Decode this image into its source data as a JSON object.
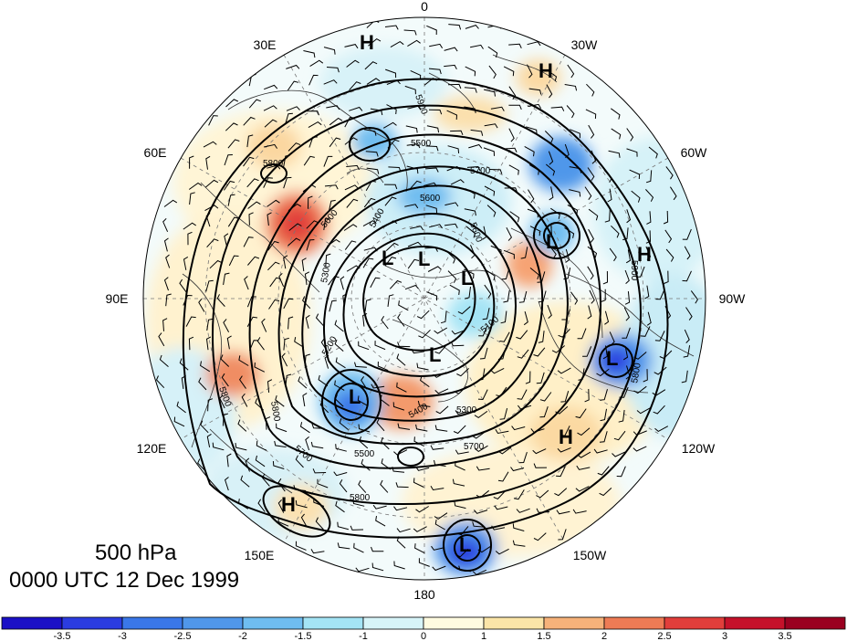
{
  "map": {
    "title_level": "500 hPa",
    "title_time": "0000 UTC 12 Dec 1999",
    "longitude_labels": [
      {
        "text": "0",
        "lon": 0
      },
      {
        "text": "30W",
        "lon": -30
      },
      {
        "text": "60W",
        "lon": -60
      },
      {
        "text": "90W",
        "lon": -90
      },
      {
        "text": "120W",
        "lon": -120
      },
      {
        "text": "150W",
        "lon": -150
      },
      {
        "text": "180",
        "lon": 180
      },
      {
        "text": "150E",
        "lon": 150
      },
      {
        "text": "120E",
        "lon": 120
      },
      {
        "text": "90E",
        "lon": 90
      },
      {
        "text": "60E",
        "lon": 60
      },
      {
        "text": "30E",
        "lon": 30
      }
    ],
    "contour_labels": [
      "5900",
      "5800",
      "5700",
      "5600",
      "5400",
      "5500",
      "5300",
      "5200",
      "5100",
      "5600",
      "5800",
      "5800",
      "5700",
      "5500",
      "5400",
      "5300",
      "5700",
      "5800",
      "5800",
      "5900",
      "5600"
    ],
    "pressure_centers": [
      "H",
      "H",
      "H",
      "H",
      "H",
      "L",
      "L",
      "L",
      "L",
      "L",
      "L",
      "L",
      "L"
    ],
    "colorbar": {
      "labels": [
        "-3.5",
        "-3",
        "-2.5",
        "-2",
        "-1.5",
        "-1",
        "0",
        "1",
        "1.5",
        "2",
        "2.5",
        "3",
        "3.5"
      ],
      "colors": [
        "#1b10c6",
        "#2b3ce0",
        "#3a77e8",
        "#5097ea",
        "#6fbdf0",
        "#a4e4f5",
        "#d7f4f8",
        "#fffbe0",
        "#fbe5a8",
        "#f6b27a",
        "#ee7b55",
        "#e13e3b",
        "#c5112a",
        "#9a0020"
      ]
    },
    "colors": {
      "land_line": "#333333",
      "contour": "#000000",
      "grid": "#777777"
    }
  }
}
